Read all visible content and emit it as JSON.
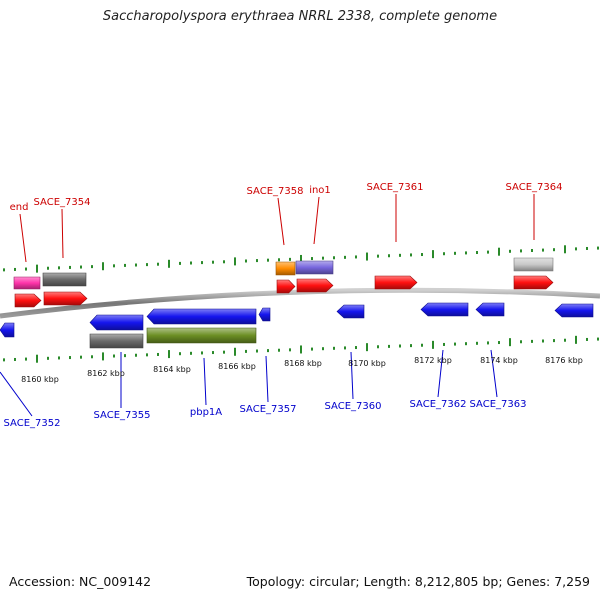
{
  "title": "Saccharopolyspora erythraea NRRL 2338, complete genome",
  "footer": {
    "accession": "Accession: NC_009142",
    "summary": "Topology: circular; Length: 8,212,805 bp; Genes: 7,259"
  },
  "colors": {
    "plus_label": "#cc0000",
    "minus_label": "#0000cc",
    "tick": "#2a8a2a",
    "backbone": "#888888",
    "red": "#ff1010",
    "blue": "#1515ee",
    "gray": "#6a6a6a",
    "light_gray": "#c8c8c8",
    "magenta": "#ff33aa",
    "orange": "#ff8c00",
    "purple": "#7766dd",
    "olive": "#6b8e23"
  },
  "scale_labels": [
    "8160 kbp",
    "8162 kbp",
    "8164 kbp",
    "8166 kbp",
    "8168 kbp",
    "8170 kbp",
    "8172 kbp",
    "8174 kbp",
    "8176 kbp"
  ],
  "plus_labels": [
    "end",
    "SACE_7354",
    "SACE_7358",
    "ino1",
    "SACE_7361",
    "SACE_7364"
  ],
  "minus_labels": [
    "SACE_7352",
    "SACE_7355",
    "pbp1A",
    "SACE_7357",
    "SACE_7360",
    "SACE_7362",
    "SACE_7363"
  ]
}
